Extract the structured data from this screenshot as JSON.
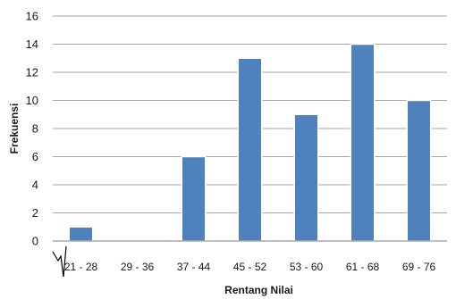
{
  "chart_data": {
    "type": "bar",
    "title": "",
    "xlabel": "Rentang Nilai",
    "ylabel": "Frekuensi",
    "categories": [
      "21 - 28",
      "29 - 36",
      "37 - 44",
      "45 - 52",
      "53 - 60",
      "61 - 68",
      "69 - 76"
    ],
    "values": [
      1,
      0,
      6,
      13,
      9,
      14,
      10
    ],
    "ylim": [
      0,
      16
    ],
    "yticks": [
      "0",
      "2",
      "4",
      "6",
      "8",
      "10",
      "12",
      "14",
      "16"
    ],
    "grid": true,
    "legend": "none",
    "bar_color": "#4f81bd",
    "axis_break_mark": true
  }
}
